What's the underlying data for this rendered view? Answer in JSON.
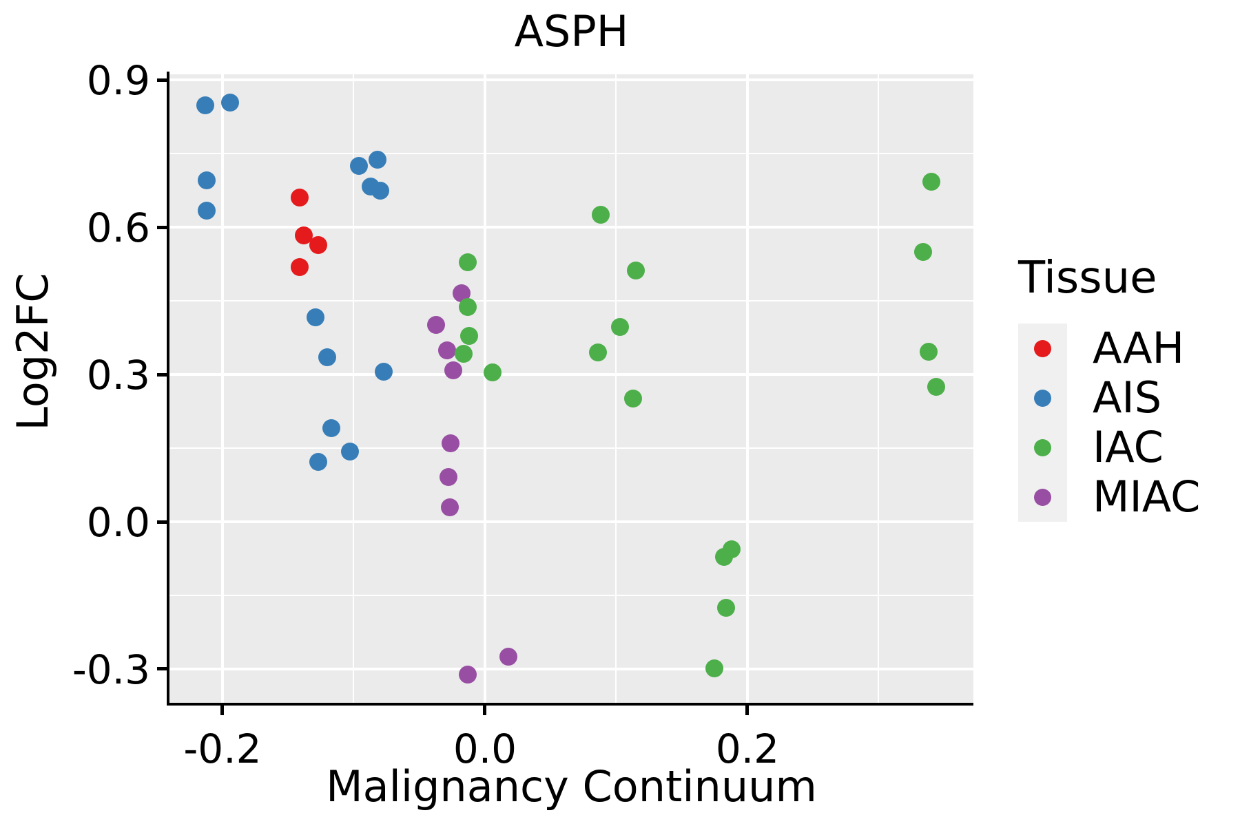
{
  "chart_data": {
    "type": "scatter",
    "title": "ASPH",
    "xlabel": "Malignancy Continuum",
    "ylabel": "Log2FC",
    "xlim": [
      -0.2404,
      0.3722
    ],
    "ylim": [
      -0.3687,
      0.9113
    ],
    "x_ticks": [
      {
        "v": -0.2,
        "label": "-0.2"
      },
      {
        "v": 0.0,
        "label": "0.0"
      },
      {
        "v": 0.2,
        "label": "0.2"
      }
    ],
    "y_ticks": [
      {
        "v": 0.9,
        "label": "0.9"
      },
      {
        "v": 0.6,
        "label": "0.6"
      },
      {
        "v": 0.3,
        "label": "0.3"
      },
      {
        "v": 0.0,
        "label": "0.0"
      },
      {
        "v": -0.3,
        "label": "-0.3"
      }
    ],
    "x_minor": [
      -0.1,
      0.1,
      0.3
    ],
    "y_minor": [
      0.75,
      0.45,
      0.15,
      -0.15
    ],
    "grid": true,
    "legend_position": "right",
    "legend_title": "Tissue",
    "draw_order": [
      "AAH",
      "AIS",
      "MIAC",
      "IAC"
    ],
    "series": [
      {
        "name": "AAH",
        "color": "#E41A1C",
        "points": [
          [
            -0.141,
            0.66
          ],
          [
            -0.138,
            0.583
          ],
          [
            -0.127,
            0.564
          ],
          [
            -0.141,
            0.519
          ]
        ]
      },
      {
        "name": "AIS",
        "color": "#377EB8",
        "points": [
          [
            -0.213,
            0.848
          ],
          [
            -0.194,
            0.854
          ],
          [
            -0.212,
            0.695
          ],
          [
            -0.212,
            0.634
          ],
          [
            -0.096,
            0.725
          ],
          [
            -0.082,
            0.738
          ],
          [
            -0.087,
            0.683
          ],
          [
            -0.08,
            0.674
          ],
          [
            -0.129,
            0.416
          ],
          [
            -0.12,
            0.335
          ],
          [
            -0.077,
            0.306
          ],
          [
            -0.117,
            0.191
          ],
          [
            -0.103,
            0.143
          ],
          [
            -0.127,
            0.122
          ]
        ]
      },
      {
        "name": "IAC",
        "color": "#4DAF4A",
        "points": [
          [
            -0.013,
            0.528
          ],
          [
            -0.013,
            0.437
          ],
          [
            -0.012,
            0.378
          ],
          [
            -0.016,
            0.342
          ],
          [
            0.006,
            0.304
          ],
          [
            0.088,
            0.625
          ],
          [
            0.115,
            0.512
          ],
          [
            0.103,
            0.397
          ],
          [
            0.086,
            0.345
          ],
          [
            0.113,
            0.251
          ],
          [
            0.182,
            -0.072
          ],
          [
            0.188,
            -0.056
          ],
          [
            0.184,
            -0.175
          ],
          [
            0.175,
            -0.299
          ],
          [
            0.34,
            0.693
          ],
          [
            0.334,
            0.55
          ],
          [
            0.338,
            0.346
          ],
          [
            0.344,
            0.275
          ]
        ]
      },
      {
        "name": "MIAC",
        "color": "#984EA3",
        "points": [
          [
            -0.018,
            0.465
          ],
          [
            -0.037,
            0.401
          ],
          [
            -0.029,
            0.349
          ],
          [
            -0.024,
            0.308
          ],
          [
            -0.026,
            0.16
          ],
          [
            -0.028,
            0.091
          ],
          [
            -0.027,
            0.029
          ],
          [
            -0.013,
            -0.311
          ],
          [
            0.018,
            -0.275
          ]
        ]
      }
    ],
    "style": {
      "panel_bg": "#EBEBEB",
      "grid_color": "#FFFFFF",
      "axis_color": "#000000",
      "legend_key_bg": "#F0F0F0",
      "background": "#FFFFFF"
    }
  }
}
